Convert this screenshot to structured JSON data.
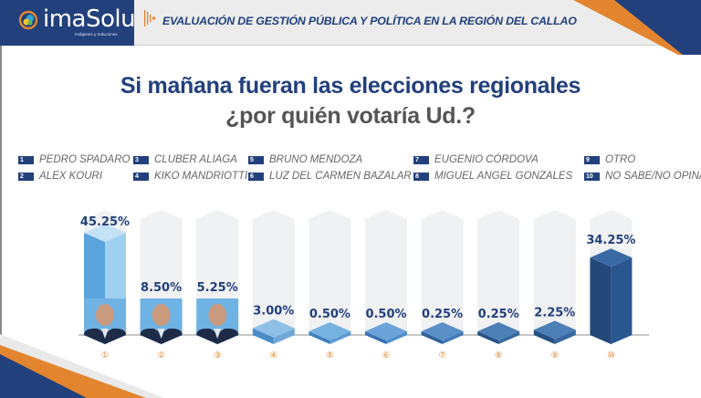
{
  "header": {
    "logo_text": "imaSolu",
    "logo_subtitle": "Imágenes y Soluciones",
    "title": "EVALUACIÓN DE GESTIÓN PÚBLICA Y POLÍTICA EN LA REGIÓN DEL CALLAO",
    "icons": [
      "logo-mark-icon",
      "sound-wave-icon"
    ]
  },
  "colors": {
    "brand_blue": "#22407c",
    "brand_orange": "#e2852e",
    "bar_light": "#9ccdee",
    "bar_mid": "#4f8fcc",
    "bar_dark": "#2a558f",
    "ghost": "#f0f1f2"
  },
  "title": {
    "line1": "Si mañana fueran las elecciones regionales",
    "line2": "¿por quién votaría Ud.?"
  },
  "legend": [
    {
      "num": "1",
      "label": "PEDRO SPADARO"
    },
    {
      "num": "2",
      "label": "ALEX KOURI"
    },
    {
      "num": "3",
      "label": "CLUBER ALIAGA"
    },
    {
      "num": "4",
      "label": "KIKO MANDRIOTTI"
    },
    {
      "num": "5",
      "label": "BRUNO MENDOZA"
    },
    {
      "num": "6",
      "label": "LUZ DEL CARMEN BAZALAR"
    },
    {
      "num": "7",
      "label": "EUGENIO CÓRDOVA"
    },
    {
      "num": "8",
      "label": "MIGUEL ANGEL GONZALES"
    },
    {
      "num": "9",
      "label": "OTRO"
    },
    {
      "num": "10",
      "label": "NO SABE/NO OPINA"
    }
  ],
  "chart_data": {
    "type": "bar",
    "title": "Si mañana fueran las elecciones regionales ¿por quién votaría Ud.?",
    "xlabel": "",
    "ylabel": "",
    "categories": [
      "1",
      "2",
      "3",
      "4",
      "5",
      "6",
      "7",
      "8",
      "9",
      "10"
    ],
    "category_names": [
      "PEDRO SPADARO",
      "ALEX KOURI",
      "CLUBER ALIAGA",
      "KIKO MANDRIOTTI",
      "BRUNO MENDOZA",
      "LUZ DEL CARMEN BAZALAR",
      "EUGENIO CÓRDOVA",
      "MIGUEL ANGEL GONZALES",
      "OTRO",
      "NO SABE/NO OPINA"
    ],
    "values": [
      45.25,
      8.5,
      5.25,
      3.0,
      0.5,
      0.5,
      0.25,
      0.25,
      2.25,
      34.25
    ],
    "labels": [
      "45.25%",
      "8.50%",
      "5.25%",
      "3.00%",
      "0.50%",
      "0.50%",
      "0.25%",
      "0.25%",
      "2.25%",
      "34.25%"
    ],
    "tick_labels": [
      "①",
      "②",
      "③",
      "④",
      "⑤",
      "⑥",
      "⑦",
      "⑧",
      "⑨",
      "⑩"
    ],
    "has_photo": [
      true,
      true,
      true,
      false,
      false,
      false,
      false,
      false,
      false,
      false
    ],
    "ylim": [
      0,
      50
    ],
    "grid": false,
    "legend_position": "top"
  }
}
